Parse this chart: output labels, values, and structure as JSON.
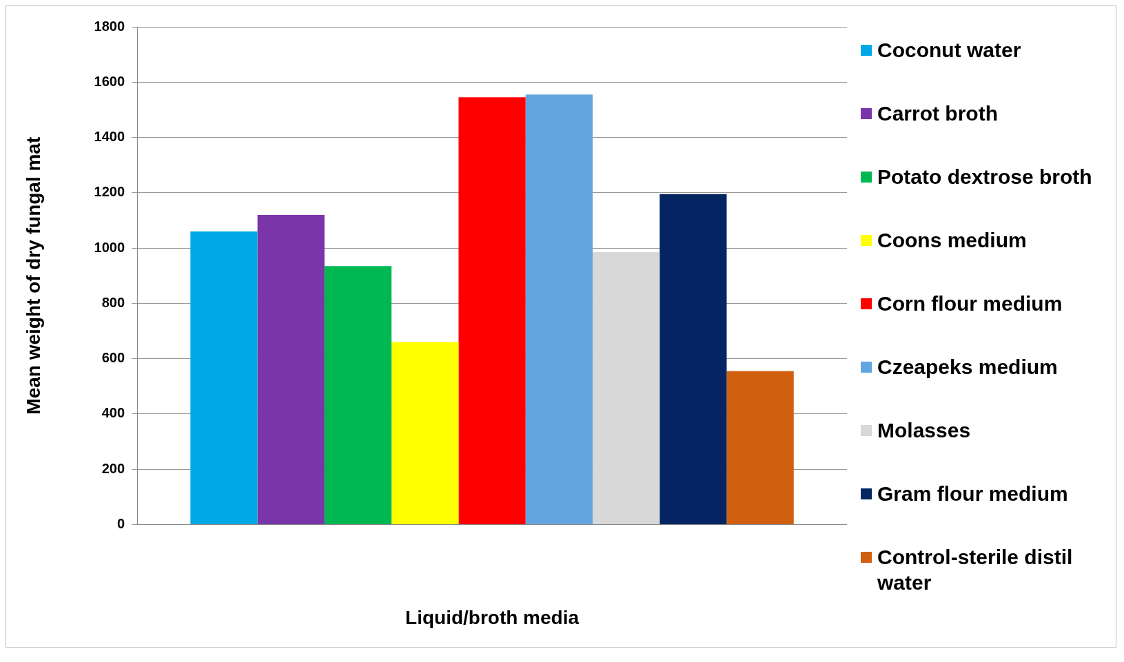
{
  "chart_data": {
    "type": "bar",
    "xlabel": "Liquid/broth media",
    "ylabel": "Mean weight of dry fungal mat",
    "categories": [
      null
    ],
    "series": [
      {
        "name": "Coconut water",
        "color": "#00a8e6",
        "values": [
          1060
        ]
      },
      {
        "name": "Carrot broth",
        "color": "#7a35a8",
        "values": [
          1120
        ]
      },
      {
        "name": "Potato dextrose broth",
        "color": "#00b852",
        "values": [
          935
        ]
      },
      {
        "name": "Coons medium",
        "color": "#ffff00",
        "values": [
          660
        ]
      },
      {
        "name": "Corn flour medium",
        "color": "#ff0000",
        "values": [
          1545
        ]
      },
      {
        "name": "Czeapeks medium",
        "color": "#62a6e0",
        "values": [
          1555
        ]
      },
      {
        "name": "Molasses",
        "color": "#d8d8d8",
        "values": [
          985
        ]
      },
      {
        "name": "Gram flour medium",
        "color": "#042562",
        "values": [
          1195
        ]
      },
      {
        "name": "Control-sterile distil water",
        "color": "#d06010",
        "values": [
          555
        ]
      }
    ],
    "ylim": [
      0,
      1800
    ],
    "yticks": [
      0,
      200,
      400,
      600,
      800,
      1000,
      1200,
      1400,
      1600,
      1800
    ],
    "grid": "y",
    "legend": "right"
  }
}
